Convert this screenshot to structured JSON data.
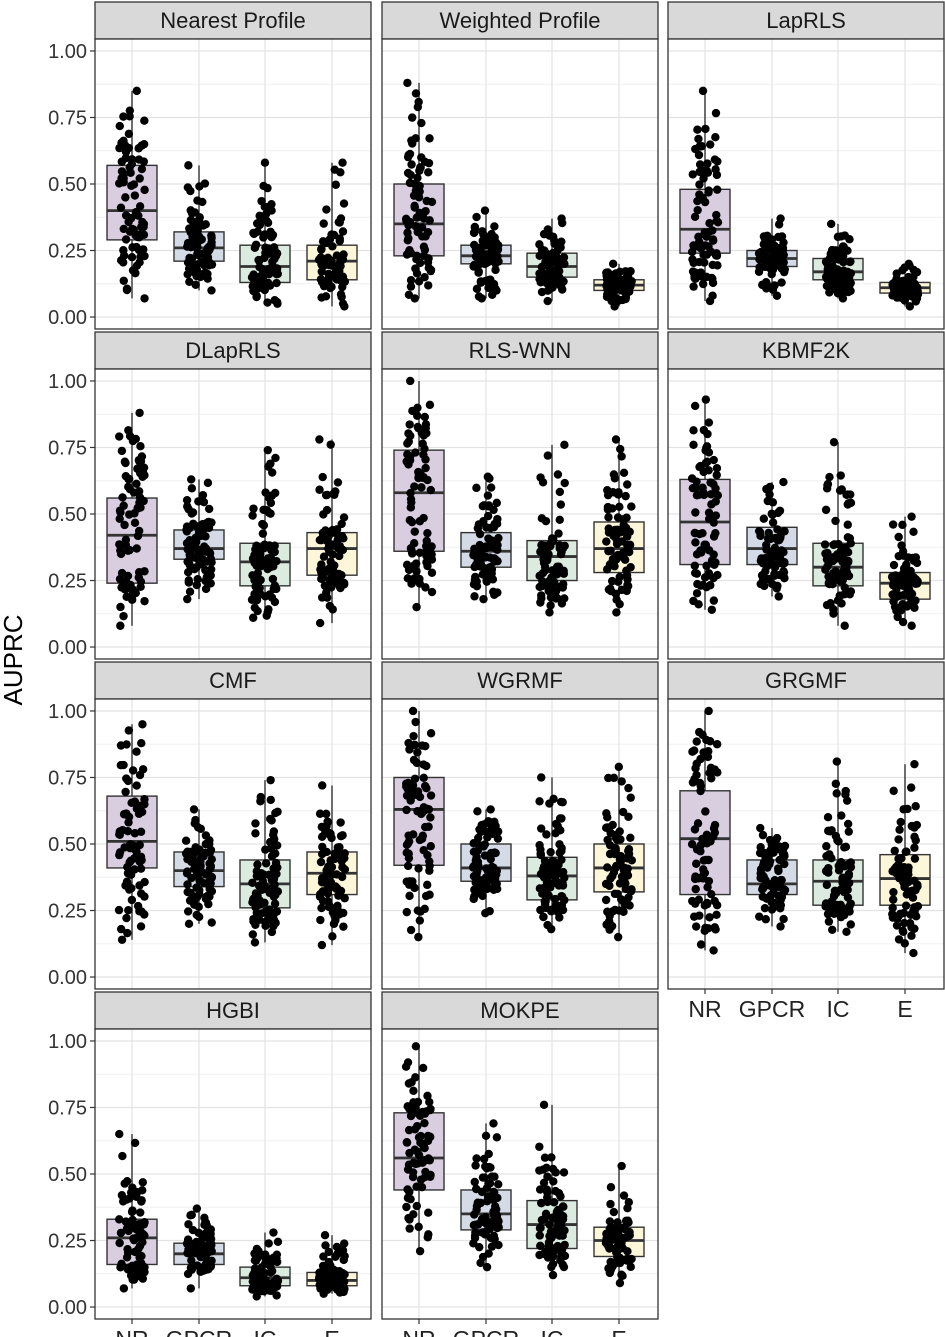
{
  "chart_data": {
    "type": "boxplot",
    "ylabel": "AUPRC",
    "xlabel": "",
    "categories": [
      "NR",
      "GPCR",
      "IC",
      "E"
    ],
    "ylim": [
      0,
      1
    ],
    "y_ticks": [
      "0.00",
      "0.25",
      "0.50",
      "0.75",
      "1.00"
    ],
    "y_tick_values": [
      0,
      0.25,
      0.5,
      0.75,
      1.0
    ],
    "grid": true,
    "category_colors": {
      "NR": "#d9cde0",
      "GPCR": "#d4dbe6",
      "IC": "#dcebe0",
      "E": "#fdf6d8"
    },
    "points_color": "#000000",
    "panels": [
      {
        "title": "Nearest Profile",
        "boxes": [
          {
            "category": "NR",
            "min": 0.07,
            "q1": 0.29,
            "median": 0.4,
            "q3": 0.57,
            "max": 0.85
          },
          {
            "category": "GPCR",
            "min": 0.1,
            "q1": 0.21,
            "median": 0.26,
            "q3": 0.32,
            "max": 0.57
          },
          {
            "category": "IC",
            "min": 0.05,
            "q1": 0.13,
            "median": 0.19,
            "q3": 0.27,
            "max": 0.58
          },
          {
            "category": "E",
            "min": 0.04,
            "q1": 0.14,
            "median": 0.21,
            "q3": 0.27,
            "max": 0.58
          }
        ]
      },
      {
        "title": "Weighted Profile",
        "boxes": [
          {
            "category": "NR",
            "min": 0.07,
            "q1": 0.23,
            "median": 0.35,
            "q3": 0.5,
            "max": 0.88
          },
          {
            "category": "GPCR",
            "min": 0.07,
            "q1": 0.2,
            "median": 0.23,
            "q3": 0.27,
            "max": 0.4
          },
          {
            "category": "IC",
            "min": 0.06,
            "q1": 0.15,
            "median": 0.19,
            "q3": 0.24,
            "max": 0.37
          },
          {
            "category": "E",
            "min": 0.04,
            "q1": 0.1,
            "median": 0.12,
            "q3": 0.14,
            "max": 0.2
          }
        ]
      },
      {
        "title": "LapRLS",
        "boxes": [
          {
            "category": "NR",
            "min": 0.06,
            "q1": 0.24,
            "median": 0.33,
            "q3": 0.48,
            "max": 0.85
          },
          {
            "category": "GPCR",
            "min": 0.08,
            "q1": 0.19,
            "median": 0.22,
            "q3": 0.25,
            "max": 0.37
          },
          {
            "category": "IC",
            "min": 0.07,
            "q1": 0.14,
            "median": 0.17,
            "q3": 0.22,
            "max": 0.35
          },
          {
            "category": "E",
            "min": 0.04,
            "q1": 0.09,
            "median": 0.11,
            "q3": 0.13,
            "max": 0.2
          }
        ]
      },
      {
        "title": "DLapRLS",
        "boxes": [
          {
            "category": "NR",
            "min": 0.08,
            "q1": 0.24,
            "median": 0.42,
            "q3": 0.56,
            "max": 0.88
          },
          {
            "category": "GPCR",
            "min": 0.18,
            "q1": 0.33,
            "median": 0.37,
            "q3": 0.44,
            "max": 0.63
          },
          {
            "category": "IC",
            "min": 0.11,
            "q1": 0.23,
            "median": 0.32,
            "q3": 0.39,
            "max": 0.74
          },
          {
            "category": "E",
            "min": 0.09,
            "q1": 0.27,
            "median": 0.37,
            "q3": 0.43,
            "max": 0.78
          }
        ]
      },
      {
        "title": "RLS-WNN",
        "boxes": [
          {
            "category": "NR",
            "min": 0.15,
            "q1": 0.36,
            "median": 0.58,
            "q3": 0.74,
            "max": 1.0
          },
          {
            "category": "GPCR",
            "min": 0.18,
            "q1": 0.3,
            "median": 0.36,
            "q3": 0.43,
            "max": 0.64
          },
          {
            "category": "IC",
            "min": 0.13,
            "q1": 0.25,
            "median": 0.34,
            "q3": 0.4,
            "max": 0.76
          },
          {
            "category": "E",
            "min": 0.13,
            "q1": 0.28,
            "median": 0.37,
            "q3": 0.47,
            "max": 0.78
          }
        ]
      },
      {
        "title": "KBMF2K",
        "boxes": [
          {
            "category": "NR",
            "min": 0.14,
            "q1": 0.31,
            "median": 0.47,
            "q3": 0.63,
            "max": 0.93
          },
          {
            "category": "GPCR",
            "min": 0.19,
            "q1": 0.31,
            "median": 0.37,
            "q3": 0.45,
            "max": 0.62
          },
          {
            "category": "IC",
            "min": 0.08,
            "q1": 0.23,
            "median": 0.3,
            "q3": 0.39,
            "max": 0.77
          },
          {
            "category": "E",
            "min": 0.08,
            "q1": 0.18,
            "median": 0.24,
            "q3": 0.28,
            "max": 0.49
          }
        ]
      },
      {
        "title": "CMF",
        "boxes": [
          {
            "category": "NR",
            "min": 0.14,
            "q1": 0.41,
            "median": 0.51,
            "q3": 0.68,
            "max": 0.95
          },
          {
            "category": "GPCR",
            "min": 0.2,
            "q1": 0.34,
            "median": 0.4,
            "q3": 0.47,
            "max": 0.63
          },
          {
            "category": "IC",
            "min": 0.13,
            "q1": 0.26,
            "median": 0.35,
            "q3": 0.44,
            "max": 0.74
          },
          {
            "category": "E",
            "min": 0.12,
            "q1": 0.31,
            "median": 0.39,
            "q3": 0.47,
            "max": 0.72
          }
        ]
      },
      {
        "title": "WGRMF",
        "boxes": [
          {
            "category": "NR",
            "min": 0.15,
            "q1": 0.42,
            "median": 0.63,
            "q3": 0.75,
            "max": 1.0
          },
          {
            "category": "GPCR",
            "min": 0.24,
            "q1": 0.36,
            "median": 0.41,
            "q3": 0.5,
            "max": 0.63
          },
          {
            "category": "IC",
            "min": 0.18,
            "q1": 0.29,
            "median": 0.38,
            "q3": 0.45,
            "max": 0.75
          },
          {
            "category": "E",
            "min": 0.15,
            "q1": 0.32,
            "median": 0.41,
            "q3": 0.5,
            "max": 0.79
          }
        ]
      },
      {
        "title": "GRGMF",
        "boxes": [
          {
            "category": "NR",
            "min": 0.1,
            "q1": 0.31,
            "median": 0.52,
            "q3": 0.7,
            "max": 1.0
          },
          {
            "category": "GPCR",
            "min": 0.19,
            "q1": 0.31,
            "median": 0.35,
            "q3": 0.44,
            "max": 0.56
          },
          {
            "category": "IC",
            "min": 0.17,
            "q1": 0.27,
            "median": 0.36,
            "q3": 0.44,
            "max": 0.81
          },
          {
            "category": "E",
            "min": 0.09,
            "q1": 0.27,
            "median": 0.37,
            "q3": 0.46,
            "max": 0.8
          }
        ]
      },
      {
        "title": "HGBI",
        "boxes": [
          {
            "category": "NR",
            "min": 0.07,
            "q1": 0.16,
            "median": 0.26,
            "q3": 0.33,
            "max": 0.65
          },
          {
            "category": "GPCR",
            "min": 0.07,
            "q1": 0.16,
            "median": 0.2,
            "q3": 0.24,
            "max": 0.37
          },
          {
            "category": "IC",
            "min": 0.04,
            "q1": 0.08,
            "median": 0.11,
            "q3": 0.15,
            "max": 0.28
          },
          {
            "category": "E",
            "min": 0.05,
            "q1": 0.08,
            "median": 0.1,
            "q3": 0.13,
            "max": 0.27
          }
        ]
      },
      {
        "title": "MOKPE",
        "boxes": [
          {
            "category": "NR",
            "min": 0.21,
            "q1": 0.44,
            "median": 0.56,
            "q3": 0.73,
            "max": 0.98
          },
          {
            "category": "GPCR",
            "min": 0.15,
            "q1": 0.29,
            "median": 0.35,
            "q3": 0.44,
            "max": 0.69
          },
          {
            "category": "IC",
            "min": 0.12,
            "q1": 0.22,
            "median": 0.31,
            "q3": 0.4,
            "max": 0.76
          },
          {
            "category": "E",
            "min": 0.09,
            "q1": 0.19,
            "median": 0.25,
            "q3": 0.3,
            "max": 0.53
          }
        ]
      }
    ]
  }
}
